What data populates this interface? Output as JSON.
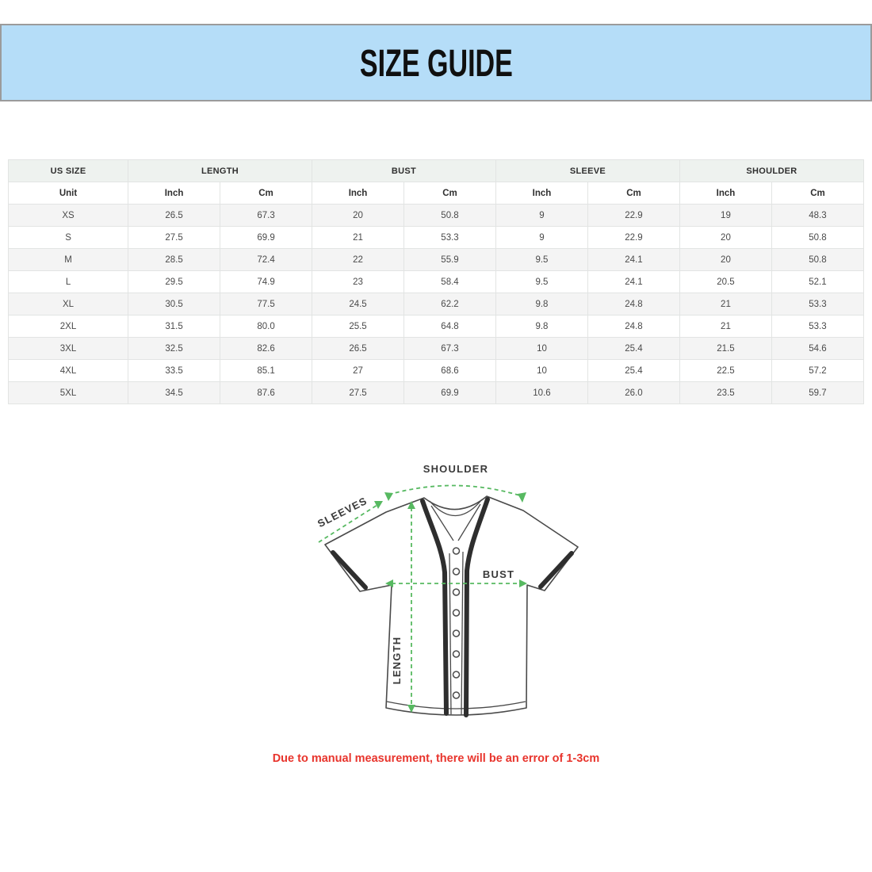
{
  "banner": {
    "title": "SIZE GUIDE"
  },
  "colors": {
    "banner_bg": "#b5ddf8",
    "banner_border": "#9b9b9b",
    "head_bg": "#eef2ef",
    "stripe_bg": "#f4f4f4",
    "grid_border": "#e2e4e3",
    "cell_text": "#4a4a4a",
    "green": "#57b961",
    "note_red": "#e8342c"
  },
  "table": {
    "groups": [
      {
        "label": "US SIZE",
        "span": 1
      },
      {
        "label": "LENGTH",
        "span": 2
      },
      {
        "label": "BUST",
        "span": 2
      },
      {
        "label": "SLEEVE",
        "span": 2
      },
      {
        "label": "SHOULDER",
        "span": 2
      }
    ],
    "unit_row": [
      "Unit",
      "Inch",
      "Cm",
      "Inch",
      "Cm",
      "Inch",
      "Cm",
      "Inch",
      "Cm"
    ],
    "rows": [
      [
        "XS",
        "26.5",
        "67.3",
        "20",
        "50.8",
        "9",
        "22.9",
        "19",
        "48.3"
      ],
      [
        "S",
        "27.5",
        "69.9",
        "21",
        "53.3",
        "9",
        "22.9",
        "20",
        "50.8"
      ],
      [
        "M",
        "28.5",
        "72.4",
        "22",
        "55.9",
        "9.5",
        "24.1",
        "20",
        "50.8"
      ],
      [
        "L",
        "29.5",
        "74.9",
        "23",
        "58.4",
        "9.5",
        "24.1",
        "20.5",
        "52.1"
      ],
      [
        "XL",
        "30.5",
        "77.5",
        "24.5",
        "62.2",
        "9.8",
        "24.8",
        "21",
        "53.3"
      ],
      [
        "2XL",
        "31.5",
        "80.0",
        "25.5",
        "64.8",
        "9.8",
        "24.8",
        "21",
        "53.3"
      ],
      [
        "3XL",
        "32.5",
        "82.6",
        "26.5",
        "67.3",
        "10",
        "25.4",
        "21.5",
        "54.6"
      ],
      [
        "4XL",
        "33.5",
        "85.1",
        "27",
        "68.6",
        "10",
        "25.4",
        "22.5",
        "57.2"
      ],
      [
        "5XL",
        "34.5",
        "87.6",
        "27.5",
        "69.9",
        "10.6",
        "26.0",
        "23.5",
        "59.7"
      ]
    ]
  },
  "chart_data": {
    "type": "table",
    "title": "SIZE GUIDE",
    "categories": [
      "XS",
      "S",
      "M",
      "L",
      "XL",
      "2XL",
      "3XL",
      "4XL",
      "5XL"
    ],
    "series": [
      {
        "name": "Length (Inch)",
        "values": [
          26.5,
          27.5,
          28.5,
          29.5,
          30.5,
          31.5,
          32.5,
          33.5,
          34.5
        ]
      },
      {
        "name": "Length (Cm)",
        "values": [
          67.3,
          69.9,
          72.4,
          74.9,
          77.5,
          80.0,
          82.6,
          85.1,
          87.6
        ]
      },
      {
        "name": "Bust (Inch)",
        "values": [
          20,
          21,
          22,
          23,
          24.5,
          25.5,
          26.5,
          27,
          27.5
        ]
      },
      {
        "name": "Bust (Cm)",
        "values": [
          50.8,
          53.3,
          55.9,
          58.4,
          62.2,
          64.8,
          67.3,
          68.6,
          69.9
        ]
      },
      {
        "name": "Sleeve (Inch)",
        "values": [
          9,
          9,
          9.5,
          9.5,
          9.8,
          9.8,
          10,
          10,
          10.6
        ]
      },
      {
        "name": "Sleeve (Cm)",
        "values": [
          22.9,
          22.9,
          24.1,
          24.1,
          24.8,
          24.8,
          25.4,
          25.4,
          26.0
        ]
      },
      {
        "name": "Shoulder (Inch)",
        "values": [
          19,
          20,
          20,
          20.5,
          21,
          21,
          21.5,
          22.5,
          23.5
        ]
      },
      {
        "name": "Shoulder (Cm)",
        "values": [
          48.3,
          50.8,
          50.8,
          52.1,
          53.3,
          53.3,
          54.6,
          57.2,
          59.7
        ]
      }
    ]
  },
  "diagram": {
    "labels": {
      "shoulder": "SHOULDER",
      "sleeves": "SLEEVES",
      "bust": "BUST",
      "length": "LENGTH"
    }
  },
  "note": {
    "text": "Due to manual measurement, there will be an error of 1-3cm"
  }
}
